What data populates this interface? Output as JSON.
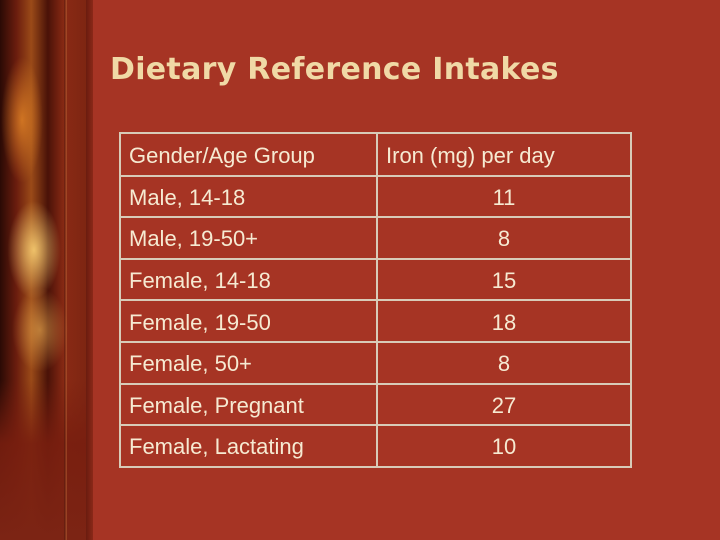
{
  "slide": {
    "title": "Dietary Reference Intakes"
  },
  "table": {
    "headers": [
      "Gender/Age Group",
      "Iron (mg) per day"
    ],
    "rows": [
      {
        "group": "Male, 14-18",
        "iron": "11"
      },
      {
        "group": "Male, 19-50+",
        "iron": "8"
      },
      {
        "group": "Female, 14-18",
        "iron": "15"
      },
      {
        "group": "Female, 19-50",
        "iron": "18"
      },
      {
        "group": "Female, 50+",
        "iron": "8"
      },
      {
        "group": "Female, Pregnant",
        "iron": "27"
      },
      {
        "group": "Female, Lactating",
        "iron": "10"
      }
    ]
  },
  "colors": {
    "background": "#a63424",
    "title": "#f0d9a6",
    "text": "#f6ead2",
    "border": "#d8cbb8"
  }
}
